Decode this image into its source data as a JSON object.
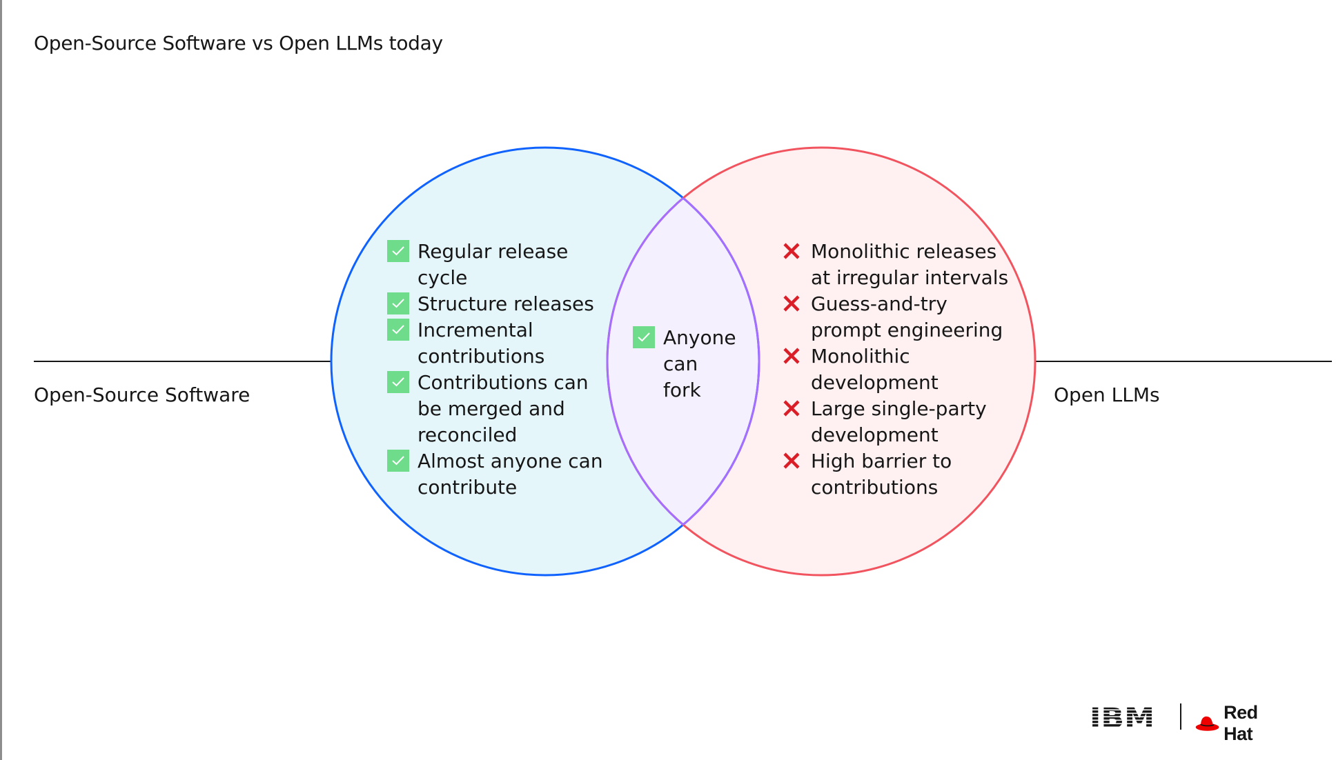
{
  "title": "Open-Source Software vs Open LLMs today",
  "labels": {
    "left": "Open-Source Software",
    "right": "Open LLMs"
  },
  "left_items": [
    "Regular release\ncycle",
    "Structure releases",
    "Incremental\ncontributions",
    "Contributions can\nbe merged and\nreconciled",
    "Almost anyone can\ncontribute"
  ],
  "overlap_items": [
    "Anyone\ncan\nfork"
  ],
  "right_items": [
    "Monolithic releases\nat irregular intervals",
    "Guess-and-try\nprompt engineering",
    "Monolithic\ndevelopment",
    "Large single-party\ndevelopment",
    "High barrier to\ncontributions"
  ],
  "logos": {
    "ibm": "IBM",
    "redhat": "Red Hat"
  },
  "colors": {
    "left_circle_stroke": "#0f62fe",
    "left_circle_fill": "#e5f6fb",
    "right_circle_stroke": "#f1545e",
    "right_circle_fill": "#fff0f1",
    "overlap_stroke": "#a56eff",
    "overlap_fill": "#f4f0fd",
    "check_fill": "#6fdc8c",
    "cross": "#da1e28",
    "redhat": "#ee0000"
  },
  "icons": {
    "check": "check-icon",
    "cross": "cross-icon"
  }
}
